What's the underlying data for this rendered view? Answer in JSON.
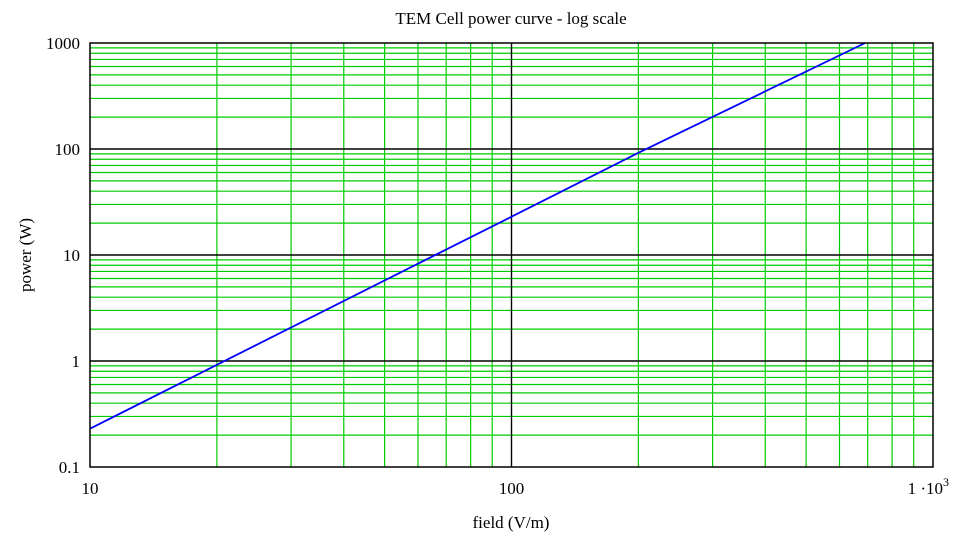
{
  "chart_data": {
    "type": "line",
    "title": "TEM Cell power curve - log scale",
    "xlabel": "field (V/m)",
    "ylabel": "power (W)",
    "x_scale": "log",
    "y_scale": "log",
    "xlim": [
      10,
      1000
    ],
    "ylim": [
      0.1,
      1000
    ],
    "x_ticks": [
      {
        "value": 10,
        "label": "10"
      },
      {
        "value": 100,
        "label": "100"
      },
      {
        "value": 1000,
        "label": "1 ·10",
        "sup": "3"
      }
    ],
    "y_ticks": [
      {
        "value": 0.1,
        "label": "0.1"
      },
      {
        "value": 1,
        "label": "1"
      },
      {
        "value": 10,
        "label": "10"
      },
      {
        "value": 100,
        "label": "100"
      },
      {
        "value": 1000,
        "label": "1000"
      }
    ],
    "grid": true,
    "series": [
      {
        "x": [
          10,
          20,
          63.6,
          100,
          200,
          690
        ],
        "y": [
          0.23,
          0.92,
          9.3,
          23,
          92,
          1000
        ]
      }
    ],
    "colors": {
      "line": "#0000ff",
      "major_grid": "#000000",
      "minor_grid": "#00cc00",
      "frame": "#000000"
    }
  }
}
